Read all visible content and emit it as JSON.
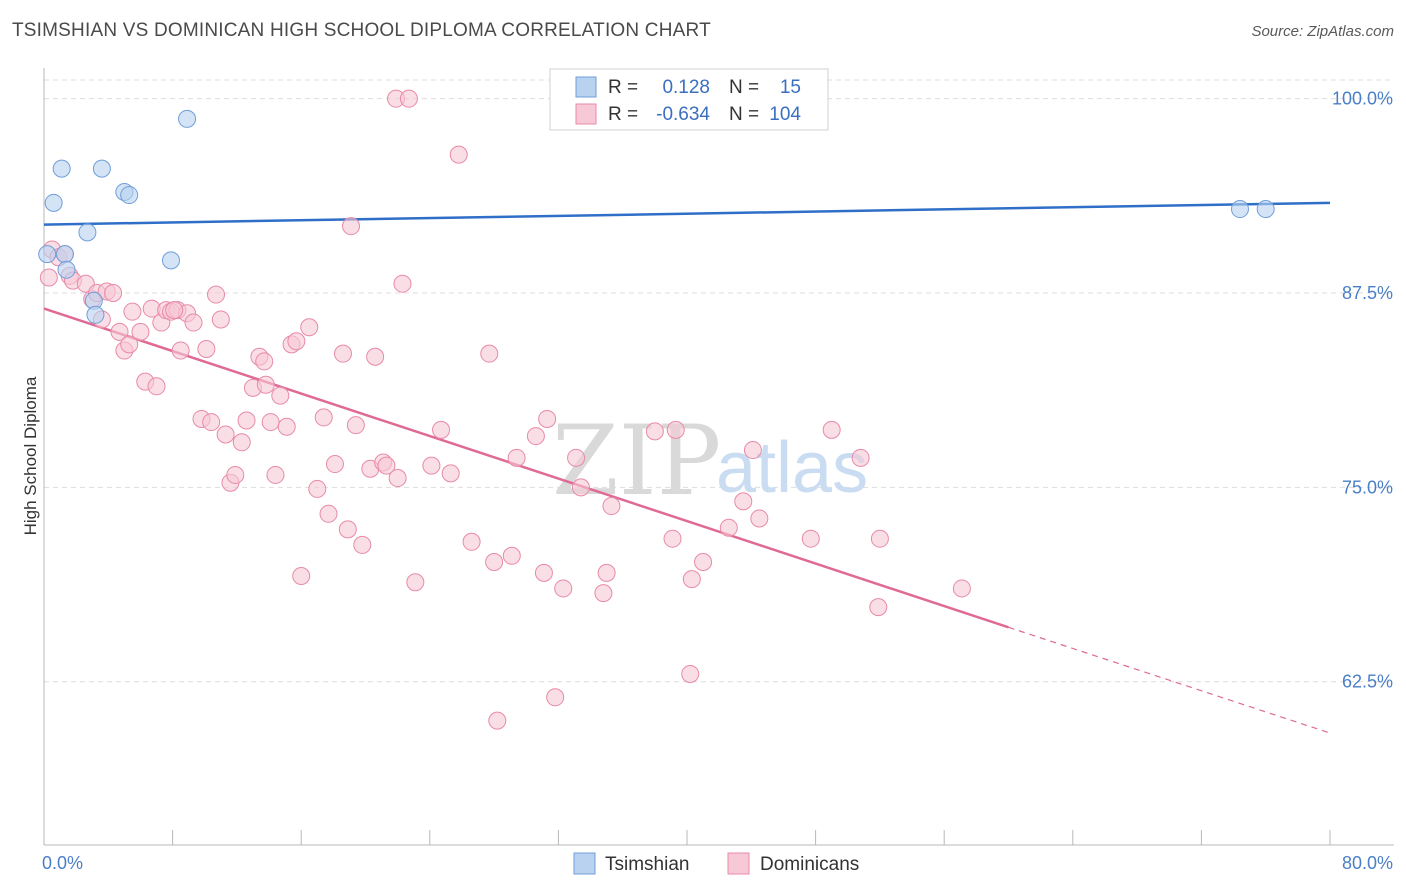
{
  "header": {
    "title": "TSIMSHIAN VS DOMINICAN HIGH SCHOOL DIPLOMA CORRELATION CHART",
    "source": "Source: ZipAtlas.com"
  },
  "watermark": {
    "zip": "ZIP",
    "atlas": "atlas"
  },
  "legend_box": {
    "rows": [
      {
        "r_label": "R =",
        "r_value": "0.128",
        "n_label": "N =",
        "n_value": "15"
      },
      {
        "r_label": "R =",
        "r_value": "-0.634",
        "n_label": "N =",
        "n_value": "104"
      }
    ]
  },
  "bottom_legend": {
    "items": [
      "Tsimshian",
      "Dominicans"
    ]
  },
  "colors": {
    "blue_fill": "#b8d2f0",
    "blue_stroke": "#6f9fd8",
    "blue_line": "#2f6fc8",
    "pink_fill": "#f7c8d6",
    "pink_stroke": "#e88aa8",
    "pink_line": "#e06a96",
    "axis_text": "#4a7fc8",
    "grid": "#dddddd"
  },
  "chart_data": {
    "type": "scatter",
    "title": "TSIMSHIAN VS DOMINICAN HIGH SCHOOL DIPLOMA CORRELATION CHART",
    "xlabel": "",
    "ylabel": "High School Diploma",
    "xlim": [
      0,
      80
    ],
    "ylim": [
      52,
      101.2
    ],
    "x_ticks": [
      0,
      8,
      16,
      24,
      32,
      40,
      48,
      56,
      64,
      72,
      80
    ],
    "x_tick_labels": [
      "0.0%",
      "80.0%"
    ],
    "y_ticks": [
      62.5,
      75.0,
      87.5,
      100.0
    ],
    "y_tick_labels": [
      "62.5%",
      "75.0%",
      "87.5%",
      "100.0%"
    ],
    "series": [
      {
        "name": "Tsimshian",
        "r": 0.128,
        "n": 15,
        "points": [
          [
            0.2,
            90.0
          ],
          [
            0.6,
            93.3
          ],
          [
            1.1,
            95.5
          ],
          [
            1.3,
            90.0
          ],
          [
            1.4,
            89.0
          ],
          [
            2.7,
            91.4
          ],
          [
            3.1,
            87.0
          ],
          [
            3.2,
            86.1
          ],
          [
            3.6,
            95.5
          ],
          [
            5.0,
            94.0
          ],
          [
            5.3,
            93.8
          ],
          [
            7.9,
            89.6
          ],
          [
            8.9,
            98.7
          ],
          [
            74.4,
            92.9
          ],
          [
            76.0,
            92.9
          ]
        ],
        "trend": {
          "x": [
            0,
            80
          ],
          "y": [
            91.9,
            93.3
          ]
        }
      },
      {
        "name": "Dominicans",
        "r": -0.634,
        "n": 104,
        "points": [
          [
            0.3,
            88.5
          ],
          [
            0.5,
            90.3
          ],
          [
            0.9,
            89.8
          ],
          [
            1.3,
            90.0
          ],
          [
            1.6,
            88.6
          ],
          [
            1.8,
            88.3
          ],
          [
            2.6,
            88.1
          ],
          [
            3.0,
            87.1
          ],
          [
            3.3,
            87.5
          ],
          [
            3.6,
            85.8
          ],
          [
            3.9,
            87.6
          ],
          [
            4.3,
            87.5
          ],
          [
            4.7,
            85.0
          ],
          [
            5.0,
            83.8
          ],
          [
            5.3,
            84.2
          ],
          [
            5.5,
            86.3
          ],
          [
            6.0,
            85.0
          ],
          [
            6.3,
            81.8
          ],
          [
            6.7,
            86.5
          ],
          [
            7.0,
            81.5
          ],
          [
            7.3,
            85.6
          ],
          [
            7.6,
            86.4
          ],
          [
            7.9,
            86.3
          ],
          [
            8.3,
            86.4
          ],
          [
            8.5,
            83.8
          ],
          [
            8.9,
            86.2
          ],
          [
            9.3,
            85.6
          ],
          [
            9.8,
            79.4
          ],
          [
            10.1,
            83.9
          ],
          [
            10.4,
            79.2
          ],
          [
            10.7,
            87.4
          ],
          [
            11.0,
            85.8
          ],
          [
            11.3,
            78.4
          ],
          [
            11.6,
            75.3
          ],
          [
            11.9,
            75.8
          ],
          [
            12.3,
            77.9
          ],
          [
            12.6,
            79.3
          ],
          [
            13.0,
            81.4
          ],
          [
            13.4,
            83.4
          ],
          [
            13.7,
            83.1
          ],
          [
            14.1,
            79.2
          ],
          [
            14.4,
            75.8
          ],
          [
            14.7,
            80.9
          ],
          [
            15.1,
            78.9
          ],
          [
            15.4,
            84.2
          ],
          [
            15.7,
            84.4
          ],
          [
            16.0,
            69.3
          ],
          [
            16.5,
            85.3
          ],
          [
            17.0,
            74.9
          ],
          [
            17.4,
            79.5
          ],
          [
            17.7,
            73.3
          ],
          [
            18.1,
            76.5
          ],
          [
            18.6,
            83.6
          ],
          [
            18.9,
            72.3
          ],
          [
            19.1,
            91.8
          ],
          [
            19.4,
            79.0
          ],
          [
            19.8,
            71.3
          ],
          [
            20.3,
            76.2
          ],
          [
            20.6,
            83.4
          ],
          [
            21.1,
            76.6
          ],
          [
            21.3,
            76.4
          ],
          [
            21.9,
            100.0
          ],
          [
            22.0,
            75.6
          ],
          [
            22.3,
            88.1
          ],
          [
            22.7,
            100.0
          ],
          [
            23.1,
            68.9
          ],
          [
            24.1,
            76.4
          ],
          [
            24.7,
            78.7
          ],
          [
            25.3,
            75.9
          ],
          [
            25.8,
            96.4
          ],
          [
            26.6,
            71.5
          ],
          [
            27.7,
            83.6
          ],
          [
            28.0,
            70.2
          ],
          [
            29.1,
            70.6
          ],
          [
            29.4,
            76.9
          ],
          [
            30.6,
            78.3
          ],
          [
            31.1,
            69.5
          ],
          [
            31.3,
            79.4
          ],
          [
            32.3,
            68.5
          ],
          [
            33.1,
            76.9
          ],
          [
            33.4,
            75.0
          ],
          [
            34.8,
            68.2
          ],
          [
            35.0,
            69.5
          ],
          [
            35.3,
            73.8
          ],
          [
            38.0,
            78.6
          ],
          [
            39.1,
            71.7
          ],
          [
            39.3,
            78.7
          ],
          [
            40.3,
            69.1
          ],
          [
            40.2,
            63.0
          ],
          [
            41.0,
            70.2
          ],
          [
            42.6,
            72.4
          ],
          [
            43.5,
            74.1
          ],
          [
            44.1,
            77.4
          ],
          [
            44.5,
            73.0
          ],
          [
            47.7,
            71.7
          ],
          [
            49.0,
            78.7
          ],
          [
            50.8,
            76.9
          ],
          [
            51.9,
            67.3
          ],
          [
            52.0,
            71.7
          ],
          [
            57.1,
            68.5
          ],
          [
            28.2,
            60.0
          ],
          [
            31.8,
            61.5
          ],
          [
            8.1,
            86.4
          ],
          [
            13.8,
            81.6
          ]
        ],
        "trend": {
          "x": [
            0,
            60
          ],
          "y": [
            86.5,
            66.0
          ]
        },
        "trend_dashed": {
          "x": [
            60,
            80
          ],
          "y": [
            66.0,
            59.2
          ]
        }
      }
    ]
  }
}
